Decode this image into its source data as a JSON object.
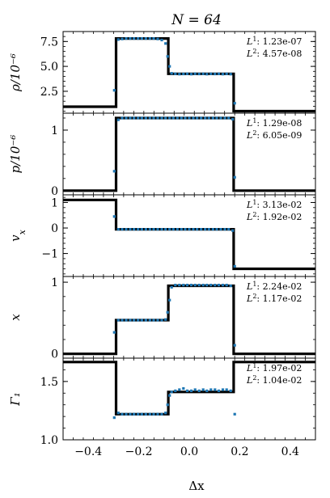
{
  "figure": {
    "title": "N = 64",
    "xlabel": "Δx",
    "xlim": [
      -0.5,
      0.5
    ],
    "xticks": [
      -0.4,
      -0.2,
      0.0,
      0.2,
      0.4
    ],
    "xtick_labels": [
      "−0.4",
      "−0.2",
      "0.0",
      "0.2",
      "0.4"
    ],
    "colors": {
      "exact": "#000000",
      "numerical": "#1f77b4"
    }
  },
  "chart_data": [
    {
      "type": "line",
      "id": "rho",
      "ylabel": "ρ/10⁻⁶",
      "ylim": [
        0.3,
        8.5
      ],
      "yticks": [
        2.5,
        5.0,
        7.5
      ],
      "ytick_labels": [
        "2.5",
        "5.0",
        "7.5"
      ],
      "norms": {
        "L1": "1.23e-07",
        "L2": "4.57e-08"
      },
      "exact": {
        "x": [
          -0.5,
          -0.29,
          -0.29,
          -0.083,
          -0.083,
          0.176,
          0.176,
          0.5
        ],
        "y": [
          0.95,
          0.95,
          7.8,
          7.8,
          4.25,
          4.25,
          0.5,
          0.5
        ]
      },
      "numerical": {
        "points": [
          [
            -0.297,
            2.6
          ],
          [
            -0.281,
            7.7
          ],
          [
            -0.266,
            7.75
          ],
          [
            -0.25,
            7.8
          ],
          [
            -0.234,
            7.8
          ],
          [
            -0.219,
            7.8
          ],
          [
            -0.203,
            7.8
          ],
          [
            -0.188,
            7.8
          ],
          [
            -0.172,
            7.8
          ],
          [
            -0.156,
            7.8
          ],
          [
            -0.141,
            7.8
          ],
          [
            -0.125,
            7.75
          ],
          [
            -0.109,
            7.65
          ],
          [
            -0.094,
            7.3
          ],
          [
            -0.086,
            6.0
          ],
          [
            -0.078,
            5.0
          ],
          [
            -0.07,
            4.3
          ],
          [
            -0.055,
            4.25
          ],
          [
            -0.039,
            4.22
          ],
          [
            -0.023,
            4.24
          ],
          [
            -0.008,
            4.25
          ],
          [
            0.008,
            4.22
          ],
          [
            0.023,
            4.26
          ],
          [
            0.039,
            4.24
          ],
          [
            0.055,
            4.25
          ],
          [
            0.07,
            4.22
          ],
          [
            0.086,
            4.25
          ],
          [
            0.102,
            4.24
          ],
          [
            0.117,
            4.25
          ],
          [
            0.133,
            4.22
          ],
          [
            0.148,
            4.25
          ],
          [
            0.164,
            4.22
          ],
          [
            0.18,
            1.3
          ]
        ]
      }
    },
    {
      "type": "line",
      "id": "p",
      "ylabel": "p/10⁻⁶",
      "ylim": [
        -0.07,
        1.28
      ],
      "yticks": [
        0,
        1
      ],
      "ytick_labels": [
        "0",
        "1"
      ],
      "norms": {
        "L1": "1.29e-08",
        "L2": "6.05e-09"
      },
      "exact": {
        "x": [
          -0.5,
          -0.29,
          -0.29,
          0.176,
          0.176,
          0.5
        ],
        "y": [
          0.0,
          0.0,
          1.2,
          1.2,
          0.0,
          0.0
        ]
      },
      "numerical": {
        "points": [
          [
            -0.297,
            0.32
          ],
          [
            -0.281,
            1.17
          ],
          [
            -0.266,
            1.2
          ],
          [
            -0.25,
            1.2
          ],
          [
            -0.234,
            1.2
          ],
          [
            -0.219,
            1.2
          ],
          [
            -0.203,
            1.2
          ],
          [
            -0.188,
            1.2
          ],
          [
            -0.172,
            1.2
          ],
          [
            -0.156,
            1.2
          ],
          [
            -0.141,
            1.2
          ],
          [
            -0.125,
            1.2
          ],
          [
            -0.109,
            1.2
          ],
          [
            -0.094,
            1.2
          ],
          [
            -0.078,
            1.2
          ],
          [
            -0.063,
            1.2
          ],
          [
            -0.047,
            1.2
          ],
          [
            -0.031,
            1.2
          ],
          [
            -0.016,
            1.2
          ],
          [
            0.0,
            1.2
          ],
          [
            0.016,
            1.2
          ],
          [
            0.031,
            1.2
          ],
          [
            0.047,
            1.2
          ],
          [
            0.063,
            1.2
          ],
          [
            0.078,
            1.2
          ],
          [
            0.094,
            1.2
          ],
          [
            0.109,
            1.2
          ],
          [
            0.125,
            1.2
          ],
          [
            0.141,
            1.2
          ],
          [
            0.156,
            1.2
          ],
          [
            0.172,
            1.18
          ],
          [
            0.18,
            0.22
          ]
        ]
      }
    },
    {
      "type": "line",
      "id": "vx",
      "ylabel": "v_x",
      "ylim": [
        -1.9,
        1.3
      ],
      "yticks": [
        -1,
        0,
        1
      ],
      "ytick_labels": [
        "−1",
        "0",
        "1"
      ],
      "norms": {
        "L1": "3.13e-02",
        "L2": "1.92e-02"
      },
      "exact": {
        "x": [
          -0.5,
          -0.29,
          -0.29,
          0.176,
          0.176,
          0.5
        ],
        "y": [
          1.1,
          1.1,
          -0.05,
          -0.05,
          -1.6,
          -1.6
        ]
      },
      "numerical": {
        "points": [
          [
            -0.297,
            0.45
          ],
          [
            -0.281,
            -0.05
          ],
          [
            -0.266,
            -0.05
          ],
          [
            -0.25,
            -0.05
          ],
          [
            -0.234,
            -0.05
          ],
          [
            -0.219,
            -0.05
          ],
          [
            -0.203,
            -0.05
          ],
          [
            -0.188,
            -0.05
          ],
          [
            -0.172,
            -0.05
          ],
          [
            -0.156,
            -0.05
          ],
          [
            -0.141,
            -0.05
          ],
          [
            -0.125,
            -0.05
          ],
          [
            -0.109,
            -0.05
          ],
          [
            -0.094,
            -0.05
          ],
          [
            -0.078,
            -0.05
          ],
          [
            -0.063,
            -0.05
          ],
          [
            -0.047,
            -0.05
          ],
          [
            -0.031,
            -0.05
          ],
          [
            -0.016,
            -0.05
          ],
          [
            0.0,
            -0.05
          ],
          [
            0.016,
            -0.05
          ],
          [
            0.031,
            -0.05
          ],
          [
            0.047,
            -0.05
          ],
          [
            0.063,
            -0.05
          ],
          [
            0.078,
            -0.05
          ],
          [
            0.094,
            -0.05
          ],
          [
            0.109,
            -0.05
          ],
          [
            0.125,
            -0.05
          ],
          [
            0.141,
            -0.05
          ],
          [
            0.156,
            -0.05
          ],
          [
            0.172,
            -0.1
          ],
          [
            0.18,
            -1.5
          ]
        ]
      }
    },
    {
      "type": "line",
      "id": "x",
      "ylabel": "x",
      "ylim": [
        -0.06,
        1.08
      ],
      "yticks": [
        0,
        1
      ],
      "ytick_labels": [
        "0",
        "1"
      ],
      "norms": {
        "L1": "2.24e-02",
        "L2": "1.17e-02"
      },
      "exact": {
        "x": [
          -0.5,
          -0.29,
          -0.29,
          -0.083,
          -0.083,
          0.176,
          0.176,
          0.5
        ],
        "y": [
          0.0,
          0.0,
          0.47,
          0.47,
          0.95,
          0.95,
          0.0,
          0.0
        ]
      },
      "numerical": {
        "points": [
          [
            -0.297,
            0.3
          ],
          [
            -0.281,
            0.47
          ],
          [
            -0.266,
            0.47
          ],
          [
            -0.25,
            0.47
          ],
          [
            -0.234,
            0.47
          ],
          [
            -0.219,
            0.47
          ],
          [
            -0.203,
            0.47
          ],
          [
            -0.188,
            0.47
          ],
          [
            -0.172,
            0.47
          ],
          [
            -0.156,
            0.47
          ],
          [
            -0.141,
            0.47
          ],
          [
            -0.125,
            0.47
          ],
          [
            -0.109,
            0.47
          ],
          [
            -0.094,
            0.48
          ],
          [
            -0.086,
            0.58
          ],
          [
            -0.078,
            0.75
          ],
          [
            -0.07,
            0.93
          ],
          [
            -0.055,
            0.96
          ],
          [
            -0.039,
            0.96
          ],
          [
            -0.023,
            0.96
          ],
          [
            -0.008,
            0.96
          ],
          [
            0.008,
            0.96
          ],
          [
            0.023,
            0.96
          ],
          [
            0.039,
            0.96
          ],
          [
            0.055,
            0.96
          ],
          [
            0.07,
            0.96
          ],
          [
            0.086,
            0.96
          ],
          [
            0.102,
            0.96
          ],
          [
            0.117,
            0.96
          ],
          [
            0.133,
            0.96
          ],
          [
            0.148,
            0.96
          ],
          [
            0.164,
            0.95
          ],
          [
            0.18,
            0.12
          ]
        ]
      }
    },
    {
      "type": "line",
      "id": "gamma",
      "ylabel": "Γ₁",
      "ylim": [
        1.0,
        1.7
      ],
      "yticks": [
        1.0,
        1.5
      ],
      "ytick_labels": [
        "1.0",
        "1.5"
      ],
      "norms": {
        "L1": "1.97e-02",
        "L2": "1.04e-02"
      },
      "exact": {
        "x": [
          -0.5,
          -0.29,
          -0.29,
          -0.083,
          -0.083,
          0.176,
          0.176,
          0.5
        ],
        "y": [
          1.667,
          1.667,
          1.22,
          1.22,
          1.41,
          1.41,
          1.667,
          1.667
        ]
      },
      "numerical": {
        "points": [
          [
            -0.297,
            1.19
          ],
          [
            -0.281,
            1.23
          ],
          [
            -0.266,
            1.22
          ],
          [
            -0.25,
            1.22
          ],
          [
            -0.234,
            1.22
          ],
          [
            -0.219,
            1.22
          ],
          [
            -0.203,
            1.22
          ],
          [
            -0.188,
            1.22
          ],
          [
            -0.172,
            1.22
          ],
          [
            -0.156,
            1.22
          ],
          [
            -0.141,
            1.22
          ],
          [
            -0.125,
            1.22
          ],
          [
            -0.109,
            1.22
          ],
          [
            -0.094,
            1.23
          ],
          [
            -0.086,
            1.3
          ],
          [
            -0.078,
            1.38
          ],
          [
            -0.07,
            1.41
          ],
          [
            -0.055,
            1.42
          ],
          [
            -0.039,
            1.43
          ],
          [
            -0.023,
            1.44
          ],
          [
            -0.008,
            1.42
          ],
          [
            0.008,
            1.42
          ],
          [
            0.023,
            1.43
          ],
          [
            0.039,
            1.42
          ],
          [
            0.055,
            1.43
          ],
          [
            0.07,
            1.42
          ],
          [
            0.086,
            1.43
          ],
          [
            0.102,
            1.43
          ],
          [
            0.117,
            1.42
          ],
          [
            0.133,
            1.43
          ],
          [
            0.148,
            1.43
          ],
          [
            0.164,
            1.42
          ],
          [
            0.18,
            1.22
          ]
        ]
      }
    }
  ]
}
